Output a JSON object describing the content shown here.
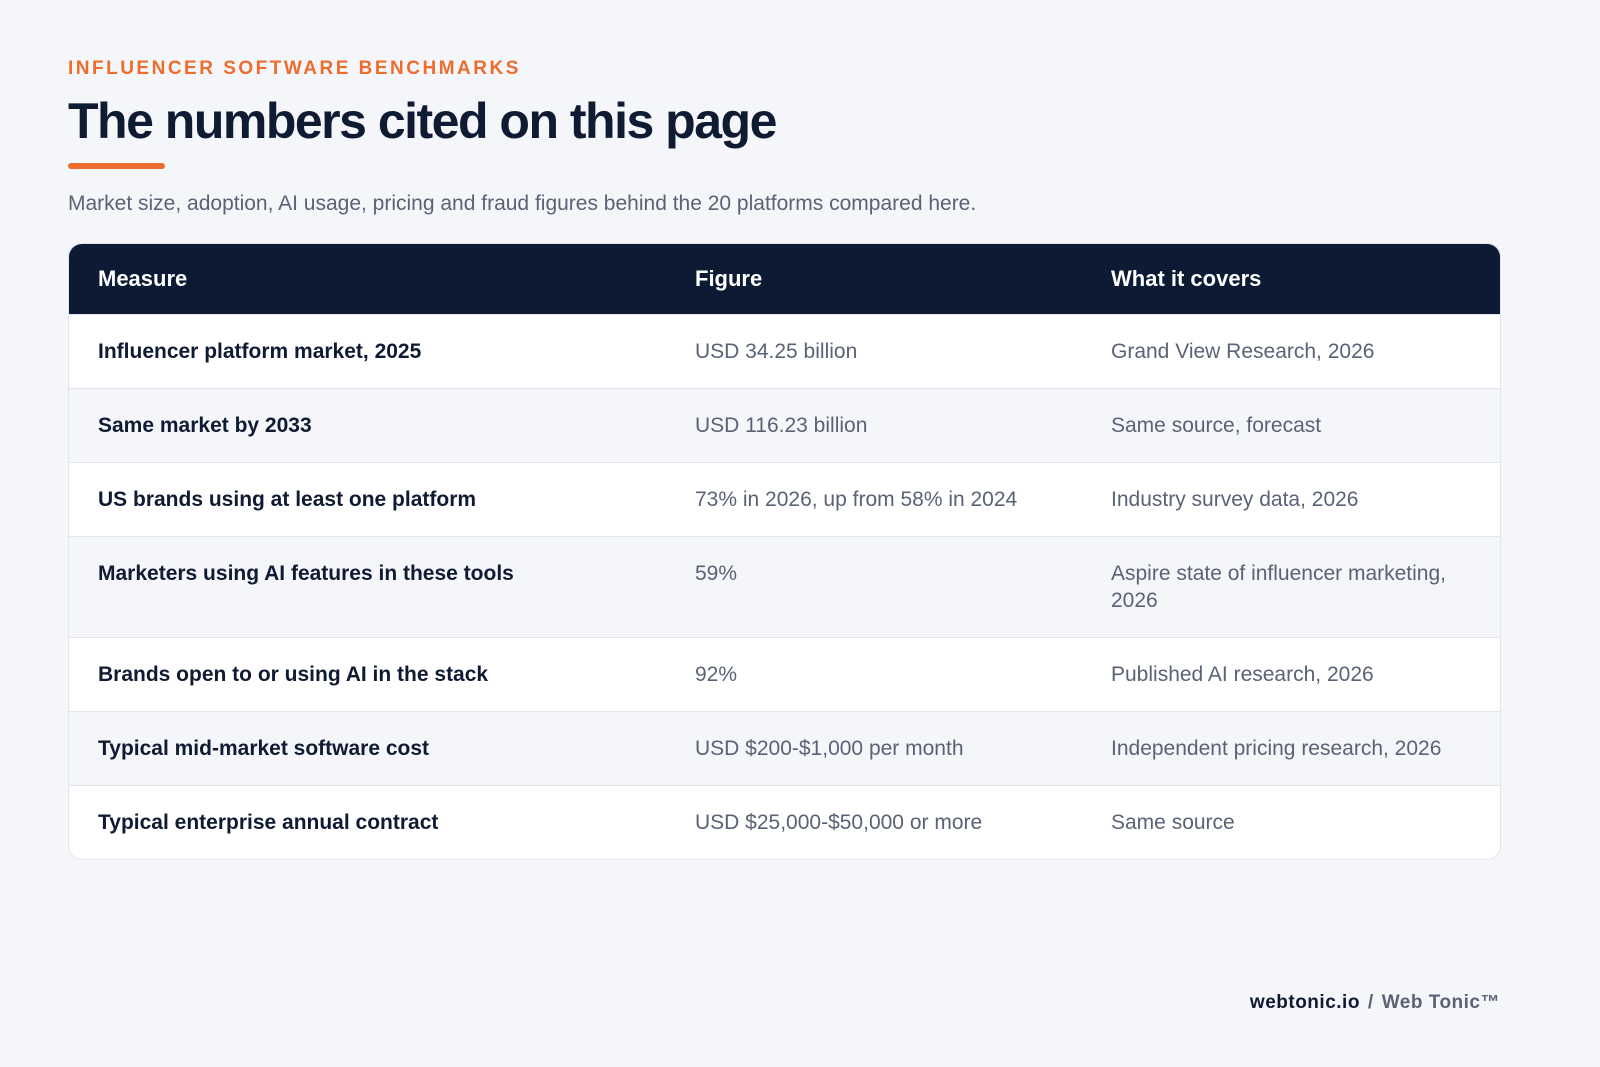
{
  "header": {
    "eyebrow": "INFLUENCER SOFTWARE BENCHMARKS",
    "title": "The numbers cited on this page",
    "subtitle": "Market size, adoption, AI usage, pricing and fraud figures behind the 20 platforms compared here."
  },
  "table": {
    "columns": [
      "Measure",
      "Figure",
      "What it covers"
    ],
    "rows": [
      [
        "Influencer platform market, 2025",
        "USD 34.25 billion",
        "Grand View Research, 2026"
      ],
      [
        "Same market by 2033",
        "USD 116.23 billion",
        "Same source, forecast"
      ],
      [
        "US brands using at least one platform",
        "73% in 2026, up from 58% in 2024",
        "Industry survey data, 2026"
      ],
      [
        "Marketers using AI features in these tools",
        "59%",
        "Aspire state of influencer marketing, 2026"
      ],
      [
        "Brands open to or using AI in the stack",
        "92%",
        "Published AI research, 2026"
      ],
      [
        "Typical mid-market software cost",
        "USD $200-$1,000 per month",
        "Independent pricing research, 2026"
      ],
      [
        "Typical enterprise annual contract",
        "USD $25,000-$50,000 or more",
        "Same source"
      ]
    ]
  },
  "footer": {
    "site": "webtonic.io",
    "separator": "/",
    "brand": "Web Tonic™"
  }
}
